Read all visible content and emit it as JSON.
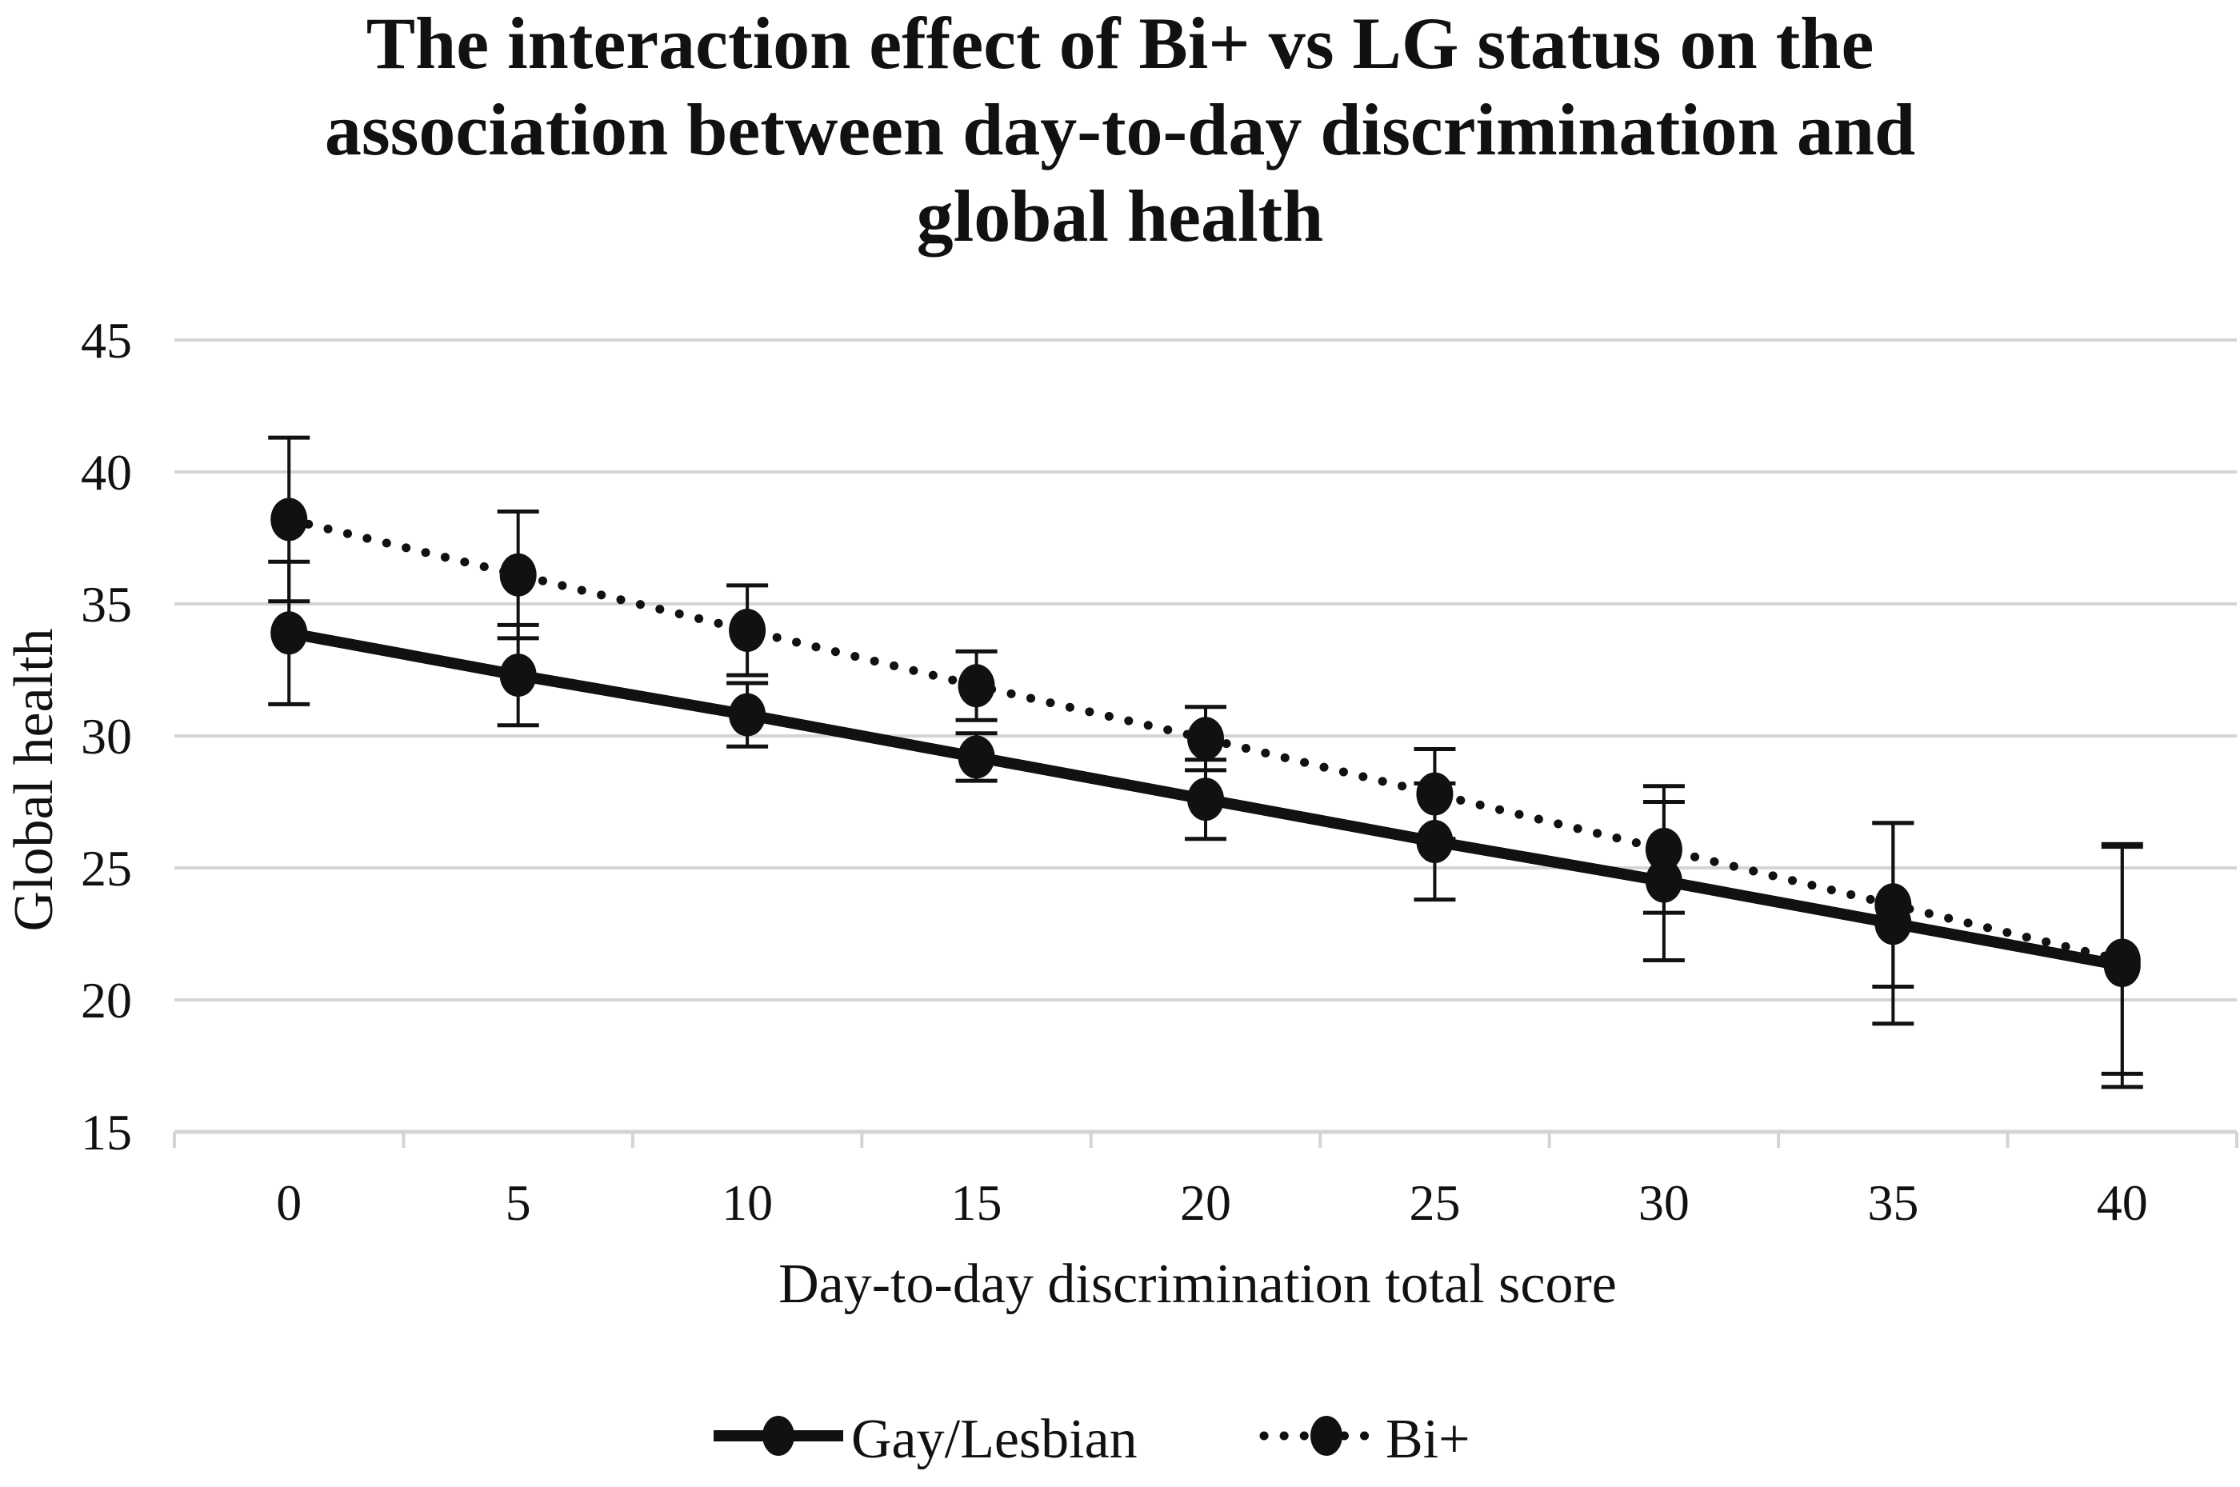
{
  "chart_data": {
    "type": "line",
    "title_lines": [
      "The interaction effect of Bi+ vs LG status on the",
      "association between day-to-day discrimination and",
      "global health"
    ],
    "xlabel": "Day-to-day discrimination total score",
    "ylabel": "Global health",
    "categories": [
      "0",
      "5",
      "10",
      "15",
      "20",
      "25",
      "30",
      "35",
      "40"
    ],
    "x": [
      0,
      5,
      10,
      15,
      20,
      25,
      30,
      35,
      40
    ],
    "ylim": [
      15,
      45
    ],
    "yticks": [
      "15",
      "20",
      "25",
      "30",
      "35",
      "40",
      "45"
    ],
    "grid": true,
    "legend_position": "bottom",
    "series": [
      {
        "name": "Gay/Lesbian",
        "line_style": "solid",
        "marker": "circle",
        "color": "#111111",
        "values": [
          33.9,
          32.3,
          30.8,
          29.2,
          27.6,
          26.0,
          24.5,
          22.9,
          21.3
        ],
        "error": [
          2.7,
          1.9,
          1.2,
          0.9,
          1.5,
          2.2,
          3.0,
          3.8,
          4.6
        ]
      },
      {
        "name": "Bi+",
        "line_style": "dotted",
        "marker": "circle",
        "color": "#111111",
        "values": [
          38.2,
          36.1,
          34.0,
          31.9,
          29.9,
          27.8,
          25.7,
          23.6,
          21.5
        ],
        "error": [
          3.1,
          2.4,
          1.7,
          1.3,
          1.2,
          1.7,
          2.4,
          3.1,
          4.3
        ]
      }
    ]
  }
}
